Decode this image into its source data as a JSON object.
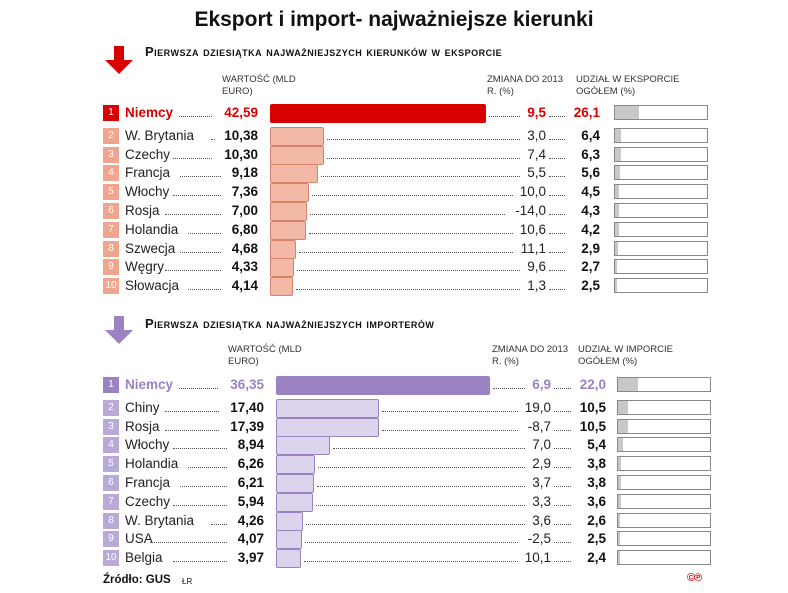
{
  "title": "Eksport i import- najważniejsze kierunki",
  "source": "Źródło: GUS",
  "credit": "ŁR",
  "copyright": "©℗",
  "colors": {
    "export_top": "#d90000",
    "export_bar": "#f2b9a6",
    "export_bar_border": "#d9826a",
    "export_rank": "#f0a58e",
    "import_top": "#9a82c3",
    "import_bar": "#dcd3ec",
    "import_bar_border": "#9a82c3",
    "import_rank": "#b8a9d6"
  },
  "chart_data": [
    {
      "type": "bar",
      "title": "Pierwsza dziesiątka najważniejszych kierunków w eksporcie",
      "value_header": "Wartość (mld euro)",
      "change_header": "Zmiana do 2013 r. (%)",
      "share_header": "Udział w eksporcie ogółem (%)",
      "ranks": [
        "1",
        "2",
        "3",
        "4",
        "5",
        "6",
        "7",
        "8",
        "9",
        "10"
      ],
      "categories": [
        "Niemcy",
        "W. Brytania",
        "Czechy",
        "Francja",
        "Włochy",
        "Rosja",
        "Holandia",
        "Szwecja",
        "Węgry",
        "Słowacja"
      ],
      "values": [
        "42,59",
        "10,38",
        "10,30",
        "9,18",
        "7,36",
        "7,00",
        "6,80",
        "4,68",
        "4,33",
        "4,14"
      ],
      "values_num": [
        42.59,
        10.38,
        10.3,
        9.18,
        7.36,
        7.0,
        6.8,
        4.68,
        4.33,
        4.14
      ],
      "change": [
        "9,5",
        "3,0",
        "7,4",
        "5,5",
        "10,0",
        "-14,0",
        "10,6",
        "11,1",
        "9,6",
        "1,3"
      ],
      "share": [
        "26,1",
        "6,4",
        "6,3",
        "5,6",
        "4,5",
        "4,3",
        "4,2",
        "2,9",
        "2,7",
        "2,5"
      ],
      "share_num": [
        26.1,
        6.4,
        6.3,
        5.6,
        4.5,
        4.3,
        4.2,
        2.9,
        2.7,
        2.5
      ]
    },
    {
      "type": "bar",
      "title": "Pierwsza dziesiątka najważniejszych importerów",
      "value_header": "Wartość (mld euro)",
      "change_header": "Zmiana do 2013 r. (%)",
      "share_header": "Udział w imporcie ogółem (%)",
      "ranks": [
        "1",
        "2",
        "3",
        "4",
        "5",
        "6",
        "7",
        "8",
        "9",
        "10"
      ],
      "categories": [
        "Niemcy",
        "Chiny",
        "Rosja",
        "Włochy",
        "Holandia",
        "Francja",
        "Czechy",
        "W. Brytania",
        "USA",
        "Belgia"
      ],
      "values": [
        "36,35",
        "17,40",
        "17,39",
        "8,94",
        "6,26",
        "6,21",
        "5,94",
        "4,26",
        "4,07",
        "3,97"
      ],
      "values_num": [
        36.35,
        17.4,
        17.39,
        8.94,
        6.26,
        6.21,
        5.94,
        4.26,
        4.07,
        3.97
      ],
      "change": [
        "6,9",
        "19,0",
        "-8,7",
        "7,0",
        "2,9",
        "3,7",
        "3,3",
        "3,6",
        "-2,5",
        "10,1"
      ],
      "share": [
        "22,0",
        "10,5",
        "10,5",
        "5,4",
        "3,8",
        "3,8",
        "3,6",
        "2,6",
        "2,5",
        "2,4"
      ],
      "share_num": [
        22.0,
        10.5,
        10.5,
        5.4,
        3.8,
        3.8,
        3.6,
        2.6,
        2.5,
        2.4
      ]
    }
  ]
}
